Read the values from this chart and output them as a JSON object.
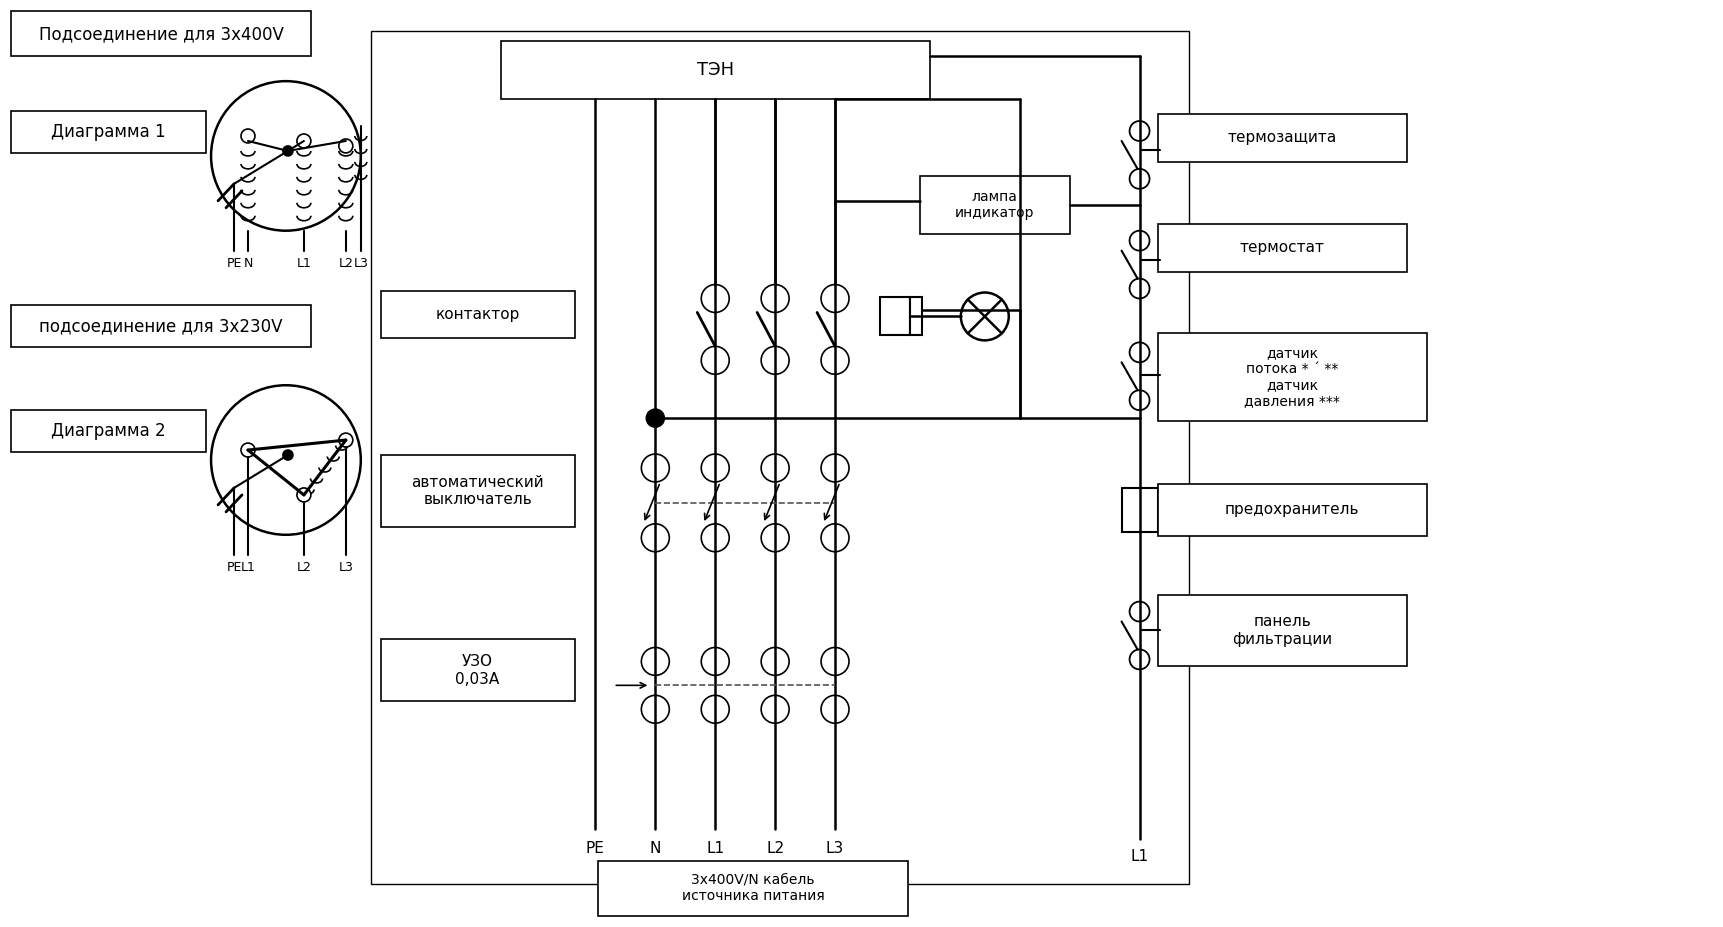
{
  "bg_color": "#ffffff",
  "title_top_left_1": "Подсоединение для 3x400V",
  "title_top_left_2": "подсоединение для 3x230V",
  "label_diagram1": "Диаграмма 1",
  "label_diagram2": "Диаграмма 2",
  "label_ten": "ТЭН",
  "label_kontaktor": "контактор",
  "label_avtomat": "автоматический\nвыключатель",
  "label_uzo": "УЗО\n0,03А",
  "label_lampa": "лампа\nиндикатор",
  "label_termozashita": "термозащита",
  "label_termostat": "термостат",
  "label_datchik": "датчик\nпотока * ´ **\nдатчик\nдавления ***",
  "label_predohranitel": "предохранитель",
  "label_panel": "панель\nфильтрации",
  "label_cable": "3х400V/N кабель\nисточника питания",
  "label_PE": "PE",
  "label_N": "N",
  "label_L1": "L1",
  "label_L2": "L2",
  "label_L3": "L3",
  "label_L1_right": "L1"
}
